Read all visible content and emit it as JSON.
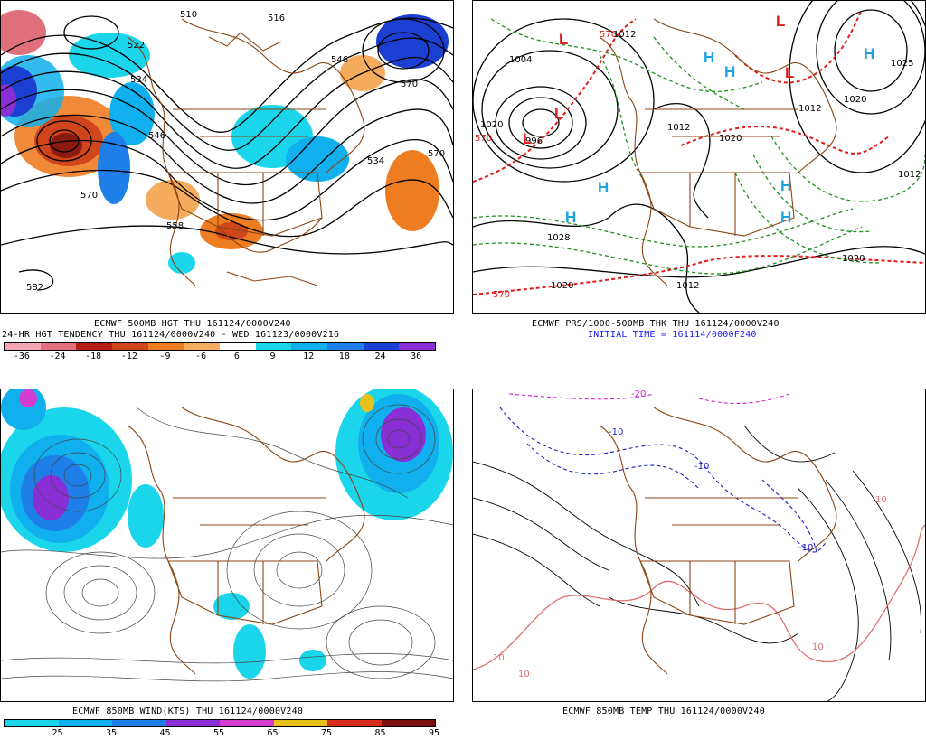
{
  "panels": {
    "p500": {
      "caption_line1": "ECMWF 500MB HGT THU 161124/0000V240",
      "caption_line2": "24-HR HGT TENDENCY THU 161124/0000V240 - WED 161123/0000V216",
      "contour_labels": [
        "510",
        "516",
        "522",
        "534",
        "546",
        "558",
        "570",
        "570",
        "582",
        "534",
        "570",
        "546"
      ],
      "colorbar": {
        "labels": [
          "-36",
          "-24",
          "-18",
          "-12",
          "-9",
          "-6",
          "6",
          "9",
          "12",
          "18",
          "24",
          "36"
        ],
        "colors": [
          "#f4a6b4",
          "#e0707c",
          "#b31d14",
          "#d0451a",
          "#ee7d22",
          "#f6ac5e",
          "#ffffff",
          "#1bd6ea",
          "#10b0ee",
          "#1f7fe8",
          "#1a3fd1",
          "#8a2fd6"
        ]
      }
    },
    "pprs": {
      "caption_line1": "ECMWF PRS/1000-500MB THK THU 161124/0000V240",
      "caption_line2": "INITIAL TIME = 161114/0000F240",
      "isobar_labels": [
        "1012",
        "1004",
        "996",
        "1020",
        "1012",
        "1020",
        "1028",
        "1020",
        "1012",
        "1020",
        "1012",
        "1025",
        "1020",
        "1012"
      ],
      "thickness_labels": [
        "570",
        "570",
        "570"
      ],
      "high_symbols": [
        "H",
        "H",
        "H",
        "H",
        "H",
        "H",
        "H"
      ],
      "low_symbols": [
        "L",
        "L",
        "L",
        "L",
        "L"
      ]
    },
    "pwind": {
      "caption_line1": "ECMWF 850MB WIND(KTS) THU 161124/0000V240",
      "colorbar": {
        "labels": [
          "25",
          "35",
          "45",
          "55",
          "65",
          "75",
          "85",
          "95"
        ],
        "colors": [
          "#1bd6ea",
          "#10b0ee",
          "#1f7fe8",
          "#8a2fd6",
          "#d43bd0",
          "#e8c21a",
          "#d82b1b",
          "#7a1010"
        ]
      }
    },
    "ptemp": {
      "caption_line1": "ECMWF 850MB TEMP THU 161124/0000V240",
      "isotherm_labels": [
        "-10",
        "-10",
        "-10",
        "10",
        "10",
        "10",
        "10",
        "-20"
      ]
    }
  },
  "colors": {
    "contour": "#000000",
    "coast": "#8b4513",
    "thickness": "#e31a1a",
    "dewpoint_green": "#1f8f1f",
    "high": "#1fa3e0",
    "low": "#e31a1a",
    "temp_warm": "#e07070",
    "temp_cold": "#1a1acc",
    "temp_very_cold": "#d020d0"
  }
}
